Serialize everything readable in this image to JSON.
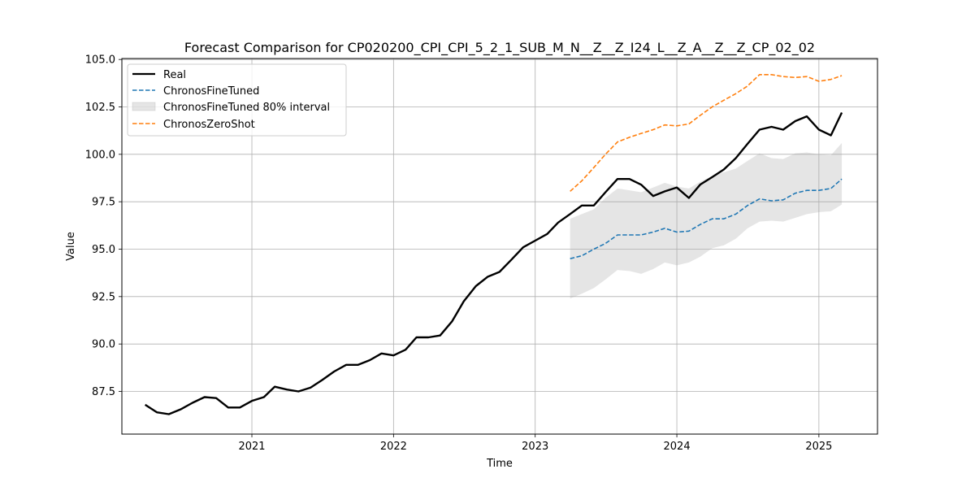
{
  "chart_data": {
    "type": "line",
    "title": "Forecast Comparison for CP020200_CPI_CPI_5_2_1_SUB_M_N__Z__Z_I24_L__Z_A__Z__Z_CP_02_02",
    "xlabel": "Time",
    "ylabel": "Value",
    "xlim": [
      "2020-02-01",
      "2025-06-01"
    ],
    "ylim": [
      85.25,
      105.05
    ],
    "x_ticks": [
      "2021",
      "2022",
      "2023",
      "2024",
      "2025"
    ],
    "y_ticks": [
      "87.5",
      "90.0",
      "92.5",
      "95.0",
      "97.5",
      "100.0",
      "102.5",
      "105.0"
    ],
    "grid": true,
    "legend_position": "top-left",
    "legend": [
      {
        "label": "Real",
        "key": "real"
      },
      {
        "label": "ChronosFineTuned",
        "key": "finetuned"
      },
      {
        "label": "ChronosFineTuned 80% interval",
        "key": "interval"
      },
      {
        "label": "ChronosZeroShot",
        "key": "zeroshot"
      }
    ],
    "series": [
      {
        "name": "Real",
        "key": "real",
        "color": "#000000",
        "style": "solid",
        "x": [
          "2020-04",
          "2020-05",
          "2020-06",
          "2020-07",
          "2020-08",
          "2020-09",
          "2020-10",
          "2020-11",
          "2020-12",
          "2021-01",
          "2021-02",
          "2021-03",
          "2021-04",
          "2021-05",
          "2021-06",
          "2021-07",
          "2021-08",
          "2021-09",
          "2021-10",
          "2021-11",
          "2021-12",
          "2022-01",
          "2022-02",
          "2022-03",
          "2022-04",
          "2022-05",
          "2022-06",
          "2022-07",
          "2022-08",
          "2022-09",
          "2022-10",
          "2022-11",
          "2022-12",
          "2023-01",
          "2023-02",
          "2023-03",
          "2023-04",
          "2023-05",
          "2023-06",
          "2023-07",
          "2023-08",
          "2023-09",
          "2023-10",
          "2023-11",
          "2023-12",
          "2024-01",
          "2024-02",
          "2024-03",
          "2024-04",
          "2024-05",
          "2024-06",
          "2024-07",
          "2024-08",
          "2024-09",
          "2024-10",
          "2024-11",
          "2024-12",
          "2025-01",
          "2025-02",
          "2025-03"
        ],
        "values": [
          86.8,
          86.4,
          86.3,
          86.55,
          86.9,
          87.2,
          87.15,
          86.65,
          86.65,
          87.0,
          87.2,
          87.75,
          87.6,
          87.5,
          87.7,
          88.1,
          88.55,
          88.9,
          88.9,
          89.15,
          89.5,
          89.4,
          89.7,
          90.35,
          90.35,
          90.45,
          91.2,
          92.25,
          93.05,
          93.55,
          93.8,
          94.45,
          95.1,
          95.45,
          95.8,
          96.4,
          96.85,
          97.3,
          97.3,
          98.0,
          98.7,
          98.7,
          98.4,
          97.8,
          98.05,
          98.25,
          97.7,
          98.4,
          98.8,
          99.2,
          99.8,
          100.55,
          101.3,
          101.45,
          101.3,
          101.75,
          102.0,
          101.3,
          101.0,
          102.2
        ]
      },
      {
        "name": "ChronosFineTuned",
        "key": "finetuned",
        "color": "#1f77b4",
        "style": "dashed",
        "x": [
          "2023-04",
          "2023-05",
          "2023-06",
          "2023-07",
          "2023-08",
          "2023-09",
          "2023-10",
          "2023-11",
          "2023-12",
          "2024-01",
          "2024-02",
          "2024-03",
          "2024-04",
          "2024-05",
          "2024-06",
          "2024-07",
          "2024-08",
          "2024-09",
          "2024-10",
          "2024-11",
          "2024-12",
          "2025-01",
          "2025-02",
          "2025-03"
        ],
        "values": [
          94.5,
          94.65,
          95.0,
          95.3,
          95.75,
          95.75,
          95.75,
          95.9,
          96.1,
          95.9,
          95.95,
          96.3,
          96.6,
          96.6,
          96.85,
          97.3,
          97.65,
          97.55,
          97.6,
          97.95,
          98.1,
          98.1,
          98.2,
          98.7
        ],
        "lower": [
          92.4,
          92.65,
          92.95,
          93.4,
          93.9,
          93.85,
          93.7,
          93.95,
          94.3,
          94.15,
          94.3,
          94.6,
          95.05,
          95.2,
          95.55,
          96.1,
          96.45,
          96.5,
          96.45,
          96.65,
          96.85,
          96.95,
          97.0,
          97.35
        ],
        "upper": [
          96.6,
          96.85,
          97.1,
          97.7,
          98.2,
          98.1,
          98.0,
          98.25,
          98.5,
          98.3,
          98.2,
          98.55,
          98.85,
          99.05,
          99.25,
          99.65,
          100.05,
          99.8,
          99.75,
          100.05,
          100.1,
          100.0,
          99.95,
          100.6
        ]
      },
      {
        "name": "ChronosZeroShot",
        "key": "zeroshot",
        "color": "#ff7f0e",
        "style": "dashed",
        "x": [
          "2023-04",
          "2023-05",
          "2023-06",
          "2023-07",
          "2023-08",
          "2023-09",
          "2023-10",
          "2023-11",
          "2023-12",
          "2024-01",
          "2024-02",
          "2024-03",
          "2024-04",
          "2024-05",
          "2024-06",
          "2024-07",
          "2024-08",
          "2024-09",
          "2024-10",
          "2024-11",
          "2024-12",
          "2025-01",
          "2025-02",
          "2025-03"
        ],
        "values": [
          98.05,
          98.6,
          99.3,
          100.0,
          100.65,
          100.9,
          101.1,
          101.3,
          101.55,
          101.5,
          101.6,
          102.05,
          102.5,
          102.85,
          103.2,
          103.6,
          104.2,
          104.2,
          104.1,
          104.05,
          104.1,
          103.85,
          103.95,
          104.15
        ]
      }
    ]
  }
}
